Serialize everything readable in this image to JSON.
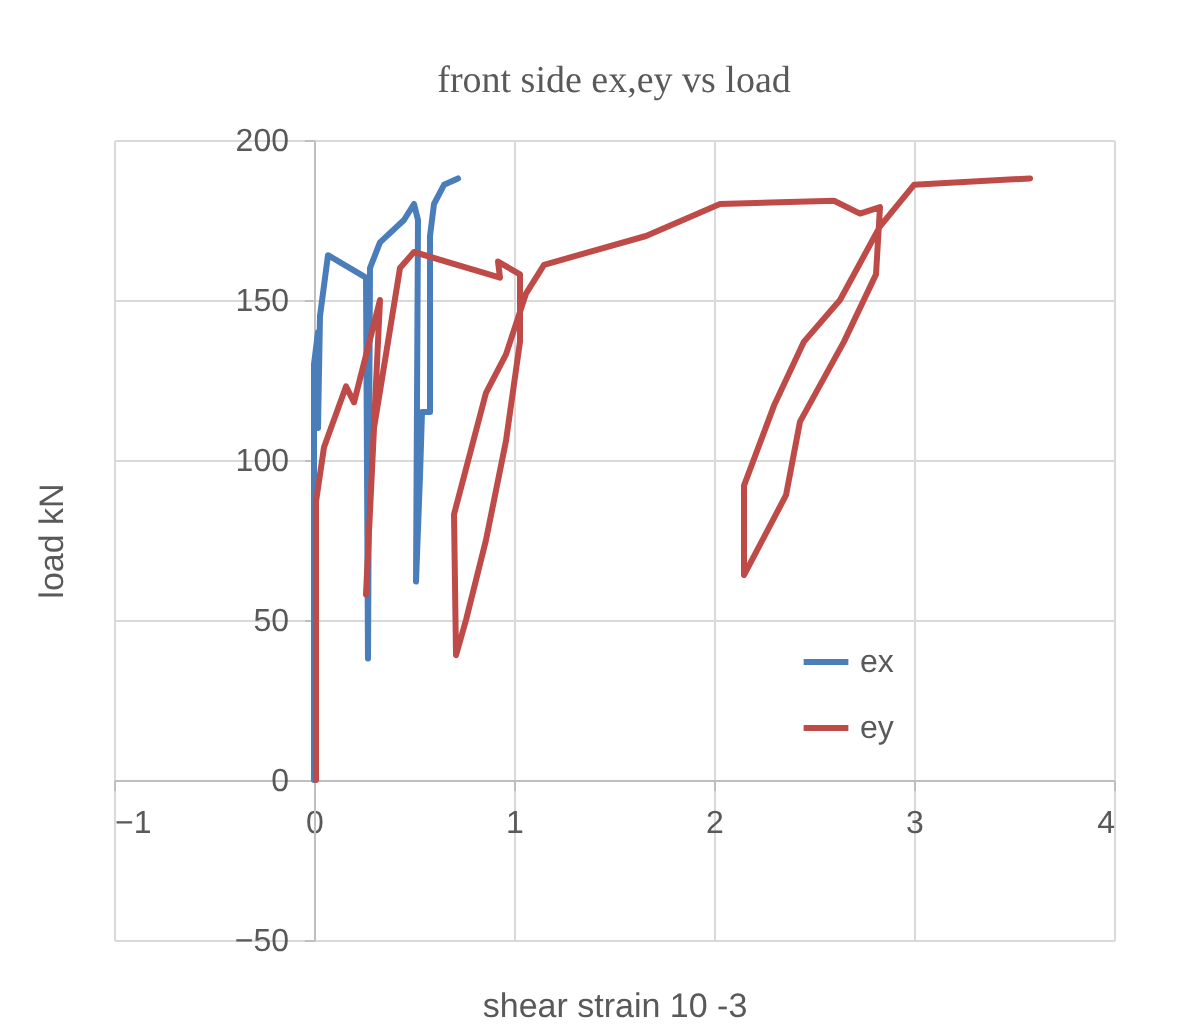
{
  "chart_data": {
    "type": "line",
    "title": "front side ex,ey vs load",
    "xlabel": "shear strain 10 -3",
    "ylabel": "load kN",
    "xlim": [
      -1,
      4
    ],
    "ylim": [
      -50,
      200
    ],
    "xticks": [
      -1,
      0,
      1,
      2,
      3,
      4
    ],
    "yticks": [
      -50,
      0,
      50,
      100,
      150,
      200
    ],
    "grid": true,
    "legend": "bottom right",
    "line_style": "solid",
    "marker": "none",
    "series": [
      {
        "name": "ex",
        "color": "#4a7ebb",
        "x": [
          0,
          0,
          0.02,
          0.02,
          0.03,
          0.07,
          0.26,
          0.27,
          0.28,
          0.33,
          0.45,
          0.5,
          0.52,
          0.51,
          0.53,
          0.54,
          0.58,
          0.58,
          0.6,
          0.65,
          0.72
        ],
        "values": [
          0,
          130,
          140,
          110,
          145,
          164,
          157,
          38,
          160,
          168,
          175,
          180,
          175,
          62,
          95,
          115,
          115,
          170,
          180,
          186,
          188
        ]
      },
      {
        "name": "ey",
        "color": "#be4b48",
        "x": [
          0.01,
          0.01,
          0.05,
          0.16,
          0.2,
          0.33,
          0.26,
          0.3,
          0.43,
          0.5,
          0.93,
          0.92,
          1.03,
          1.03,
          0.96,
          0.86,
          0.76,
          0.71,
          0.7,
          0.86,
          0.96,
          1.06,
          1.15,
          1.66,
          2.03,
          2.6,
          2.73,
          2.83,
          2.81,
          2.65,
          2.43,
          2.36,
          2.15,
          2.15,
          2.3,
          2.45,
          2.63,
          2.83,
          3.0,
          3.58
        ],
        "values": [
          0,
          87,
          104,
          123,
          118,
          150,
          58,
          110,
          160,
          165,
          157,
          162,
          158,
          137,
          106,
          75,
          50,
          39,
          83,
          121,
          133,
          152,
          161,
          170,
          180,
          181,
          177,
          179,
          158,
          137,
          112,
          89,
          64,
          92,
          117,
          137,
          150,
          173,
          186,
          188
        ]
      }
    ]
  }
}
